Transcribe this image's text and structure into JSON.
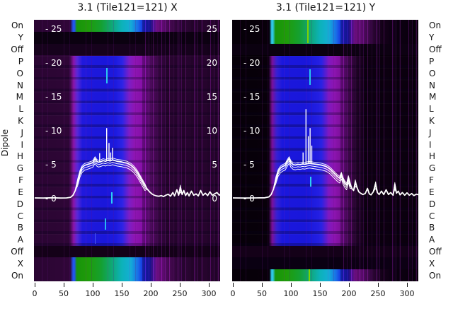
{
  "figure": {
    "ylabel": "Dipole",
    "background": "#ffffff"
  },
  "chart_data": {
    "type": "heatmap+line",
    "description": "Two beamformer test waterfall panels (power vs channel for each dipole state) with overlaid white spectrum traces",
    "row_labels": [
      "On",
      "Y",
      "Off",
      "P",
      "O",
      "N",
      "M",
      "L",
      "K",
      "J",
      "I",
      "H",
      "G",
      "F",
      "E",
      "D",
      "C",
      "B",
      "A",
      "Off",
      "X",
      "On"
    ],
    "value_ticks_left": [
      "- 25",
      "- 20",
      "- 15",
      "- 10",
      "- 5",
      "- 0"
    ],
    "value_ticks_right": [
      "25",
      "20",
      "15",
      "10",
      "5",
      "0"
    ],
    "value_tick_numbers": [
      25,
      20,
      15,
      10,
      5,
      0
    ],
    "x_tick_labels": [
      "0",
      "50",
      "100",
      "150",
      "200",
      "250",
      "300"
    ],
    "x_tick_values": [
      0,
      50,
      100,
      150,
      200,
      250,
      300
    ],
    "xlim": [
      0,
      321
    ],
    "colors": {
      "curve": "#ffffff",
      "axis_text": "#111111",
      "inside_tick_text": "#ffffff",
      "panel_bg_x": "#2a0532",
      "panel_bg_y": "#060008",
      "band_blue": "#1b18dc",
      "band_magenta": "#8c14b0",
      "band_green": "#1e9c08",
      "band_cyan": "#10b0c0"
    },
    "panels": [
      {
        "id": "x",
        "title": "3.1 (Tile121=121) X",
        "right_tick_labels": true,
        "curve": [
          [
            0,
            0.1
          ],
          [
            15,
            0.08
          ],
          [
            30,
            0.12
          ],
          [
            45,
            0.08
          ],
          [
            55,
            0.1
          ],
          [
            62,
            0.2
          ],
          [
            66,
            0.5
          ],
          [
            70,
            1.2
          ],
          [
            74,
            2.6
          ],
          [
            78,
            3.9
          ],
          [
            82,
            4.6
          ],
          [
            86,
            4.9
          ],
          [
            90,
            5.0
          ],
          [
            95,
            5.15
          ],
          [
            100,
            5.3
          ],
          [
            104,
            5.9
          ],
          [
            107,
            5.5
          ],
          [
            110,
            5.35
          ],
          [
            114,
            5.45
          ],
          [
            118,
            5.6
          ],
          [
            122,
            5.5
          ],
          [
            126,
            5.65
          ],
          [
            130,
            5.55
          ],
          [
            134,
            5.7
          ],
          [
            138,
            5.6
          ],
          [
            142,
            5.5
          ],
          [
            146,
            5.45
          ],
          [
            150,
            5.4
          ],
          [
            154,
            5.3
          ],
          [
            158,
            5.25
          ],
          [
            162,
            5.1
          ],
          [
            166,
            4.9
          ],
          [
            170,
            4.6
          ],
          [
            174,
            4.2
          ],
          [
            178,
            3.7
          ],
          [
            182,
            3.1
          ],
          [
            186,
            2.5
          ],
          [
            190,
            1.9
          ],
          [
            194,
            1.4
          ],
          [
            198,
            1.0
          ],
          [
            202,
            0.7
          ],
          [
            206,
            0.5
          ],
          [
            210,
            0.4
          ],
          [
            214,
            0.35
          ],
          [
            218,
            0.45
          ],
          [
            222,
            0.3
          ],
          [
            226,
            0.5
          ],
          [
            230,
            0.65
          ],
          [
            234,
            0.35
          ],
          [
            238,
            0.9
          ],
          [
            241,
            0.4
          ],
          [
            245,
            1.3
          ],
          [
            248,
            0.5
          ],
          [
            251,
            1.7
          ],
          [
            254,
            0.6
          ],
          [
            257,
            1.2
          ],
          [
            260,
            0.45
          ],
          [
            263,
            0.9
          ],
          [
            266,
            0.4
          ],
          [
            270,
            1.1
          ],
          [
            274,
            0.5
          ],
          [
            278,
            0.7
          ],
          [
            282,
            0.4
          ],
          [
            286,
            1.2
          ],
          [
            290,
            0.5
          ],
          [
            294,
            0.8
          ],
          [
            298,
            0.45
          ],
          [
            302,
            1.0
          ],
          [
            306,
            0.5
          ],
          [
            310,
            0.7
          ],
          [
            314,
            0.9
          ],
          [
            318,
            0.5
          ],
          [
            321,
            0.7
          ]
        ],
        "spikes": [
          [
            112,
            6.7
          ],
          [
            124,
            10.4
          ],
          [
            128,
            8.2
          ],
          [
            131,
            6.8
          ],
          [
            134,
            7.5
          ]
        ]
      },
      {
        "id": "y",
        "title": "3.1 (Tile121=121) Y",
        "right_tick_labels": false,
        "curve": [
          [
            0,
            0.1
          ],
          [
            20,
            0.08
          ],
          [
            40,
            0.1
          ],
          [
            55,
            0.12
          ],
          [
            62,
            0.25
          ],
          [
            66,
            0.6
          ],
          [
            70,
            1.4
          ],
          [
            74,
            2.9
          ],
          [
            78,
            4.0
          ],
          [
            82,
            4.5
          ],
          [
            86,
            4.75
          ],
          [
            90,
            4.9
          ],
          [
            94,
            5.5
          ],
          [
            97,
            5.9
          ],
          [
            100,
            5.3
          ],
          [
            104,
            5.0
          ],
          [
            108,
            4.95
          ],
          [
            112,
            5.05
          ],
          [
            116,
            5.0
          ],
          [
            120,
            5.1
          ],
          [
            124,
            5.05
          ],
          [
            128,
            5.15
          ],
          [
            132,
            5.2
          ],
          [
            136,
            5.15
          ],
          [
            140,
            5.1
          ],
          [
            144,
            5.05
          ],
          [
            148,
            5.0
          ],
          [
            152,
            4.95
          ],
          [
            156,
            4.85
          ],
          [
            160,
            4.75
          ],
          [
            164,
            4.55
          ],
          [
            168,
            4.3
          ],
          [
            172,
            3.95
          ],
          [
            176,
            3.6
          ],
          [
            180,
            3.25
          ],
          [
            184,
            3.0
          ],
          [
            187,
            3.6
          ],
          [
            190,
            2.8
          ],
          [
            193,
            2.3
          ],
          [
            196,
            2.0
          ],
          [
            199,
            3.1
          ],
          [
            202,
            2.2
          ],
          [
            205,
            1.5
          ],
          [
            208,
            1.2
          ],
          [
            211,
            2.5
          ],
          [
            214,
            1.6
          ],
          [
            217,
            1.0
          ],
          [
            220,
            0.8
          ],
          [
            224,
            0.6
          ],
          [
            228,
            0.75
          ],
          [
            232,
            1.5
          ],
          [
            235,
            0.7
          ],
          [
            238,
            0.55
          ],
          [
            242,
            1.0
          ],
          [
            246,
            2.2
          ],
          [
            249,
            0.9
          ],
          [
            252,
            0.6
          ],
          [
            256,
            1.1
          ],
          [
            260,
            0.6
          ],
          [
            264,
            1.3
          ],
          [
            268,
            0.6
          ],
          [
            272,
            0.9
          ],
          [
            276,
            0.5
          ],
          [
            279,
            2.1
          ],
          [
            282,
            0.8
          ],
          [
            285,
            1.1
          ],
          [
            288,
            0.55
          ],
          [
            292,
            0.9
          ],
          [
            296,
            0.5
          ],
          [
            300,
            0.85
          ],
          [
            304,
            0.5
          ],
          [
            308,
            0.75
          ],
          [
            312,
            0.45
          ],
          [
            316,
            0.65
          ],
          [
            321,
            0.55
          ]
        ],
        "spikes": [
          [
            121,
            6.8
          ],
          [
            126,
            13.2
          ],
          [
            130,
            9.2
          ],
          [
            133,
            10.4
          ],
          [
            136,
            7.8
          ]
        ]
      }
    ]
  }
}
